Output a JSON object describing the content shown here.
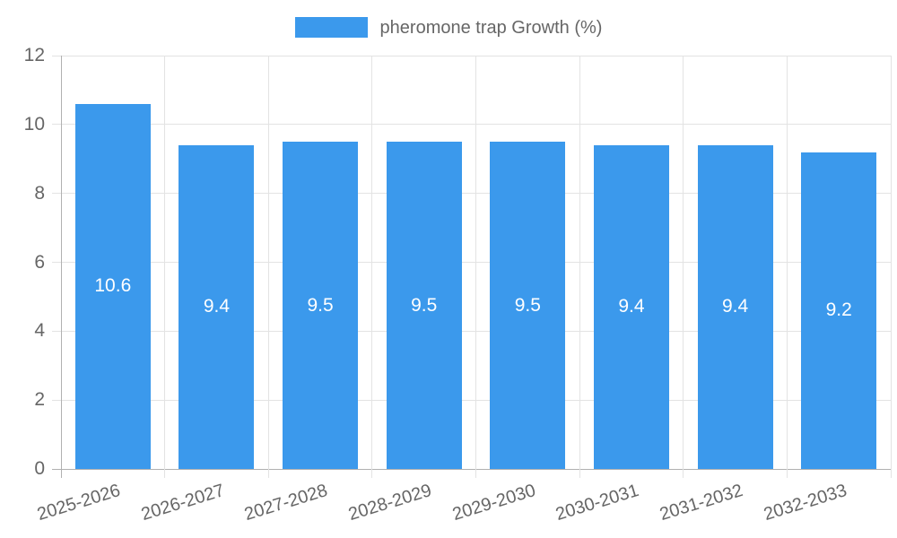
{
  "chart_data": {
    "type": "bar",
    "legend_label": "pheromone trap Growth (%)",
    "legend_position": "top",
    "categories": [
      "2025-2026",
      "2026-2027",
      "2027-2028",
      "2028-2029",
      "2029-2030",
      "2030-2031",
      "2031-2032",
      "2032-2033"
    ],
    "values": [
      10.6,
      9.4,
      9.5,
      9.5,
      9.5,
      9.4,
      9.4,
      9.2
    ],
    "value_labels": [
      "10.6",
      "9.4",
      "9.5",
      "9.5",
      "9.5",
      "9.4",
      "9.4",
      "9.2"
    ],
    "xlabel": "",
    "ylabel": "",
    "ylim": [
      0,
      12
    ],
    "yticks": [
      0,
      2,
      4,
      6,
      8,
      10,
      12
    ],
    "grid": true,
    "colors": {
      "bar": "#3b99ec",
      "text": "#666666",
      "grid": "#e3e3e3",
      "axis": "#b1b1b1",
      "value_label": "#ffffff",
      "background": "#ffffff"
    }
  }
}
